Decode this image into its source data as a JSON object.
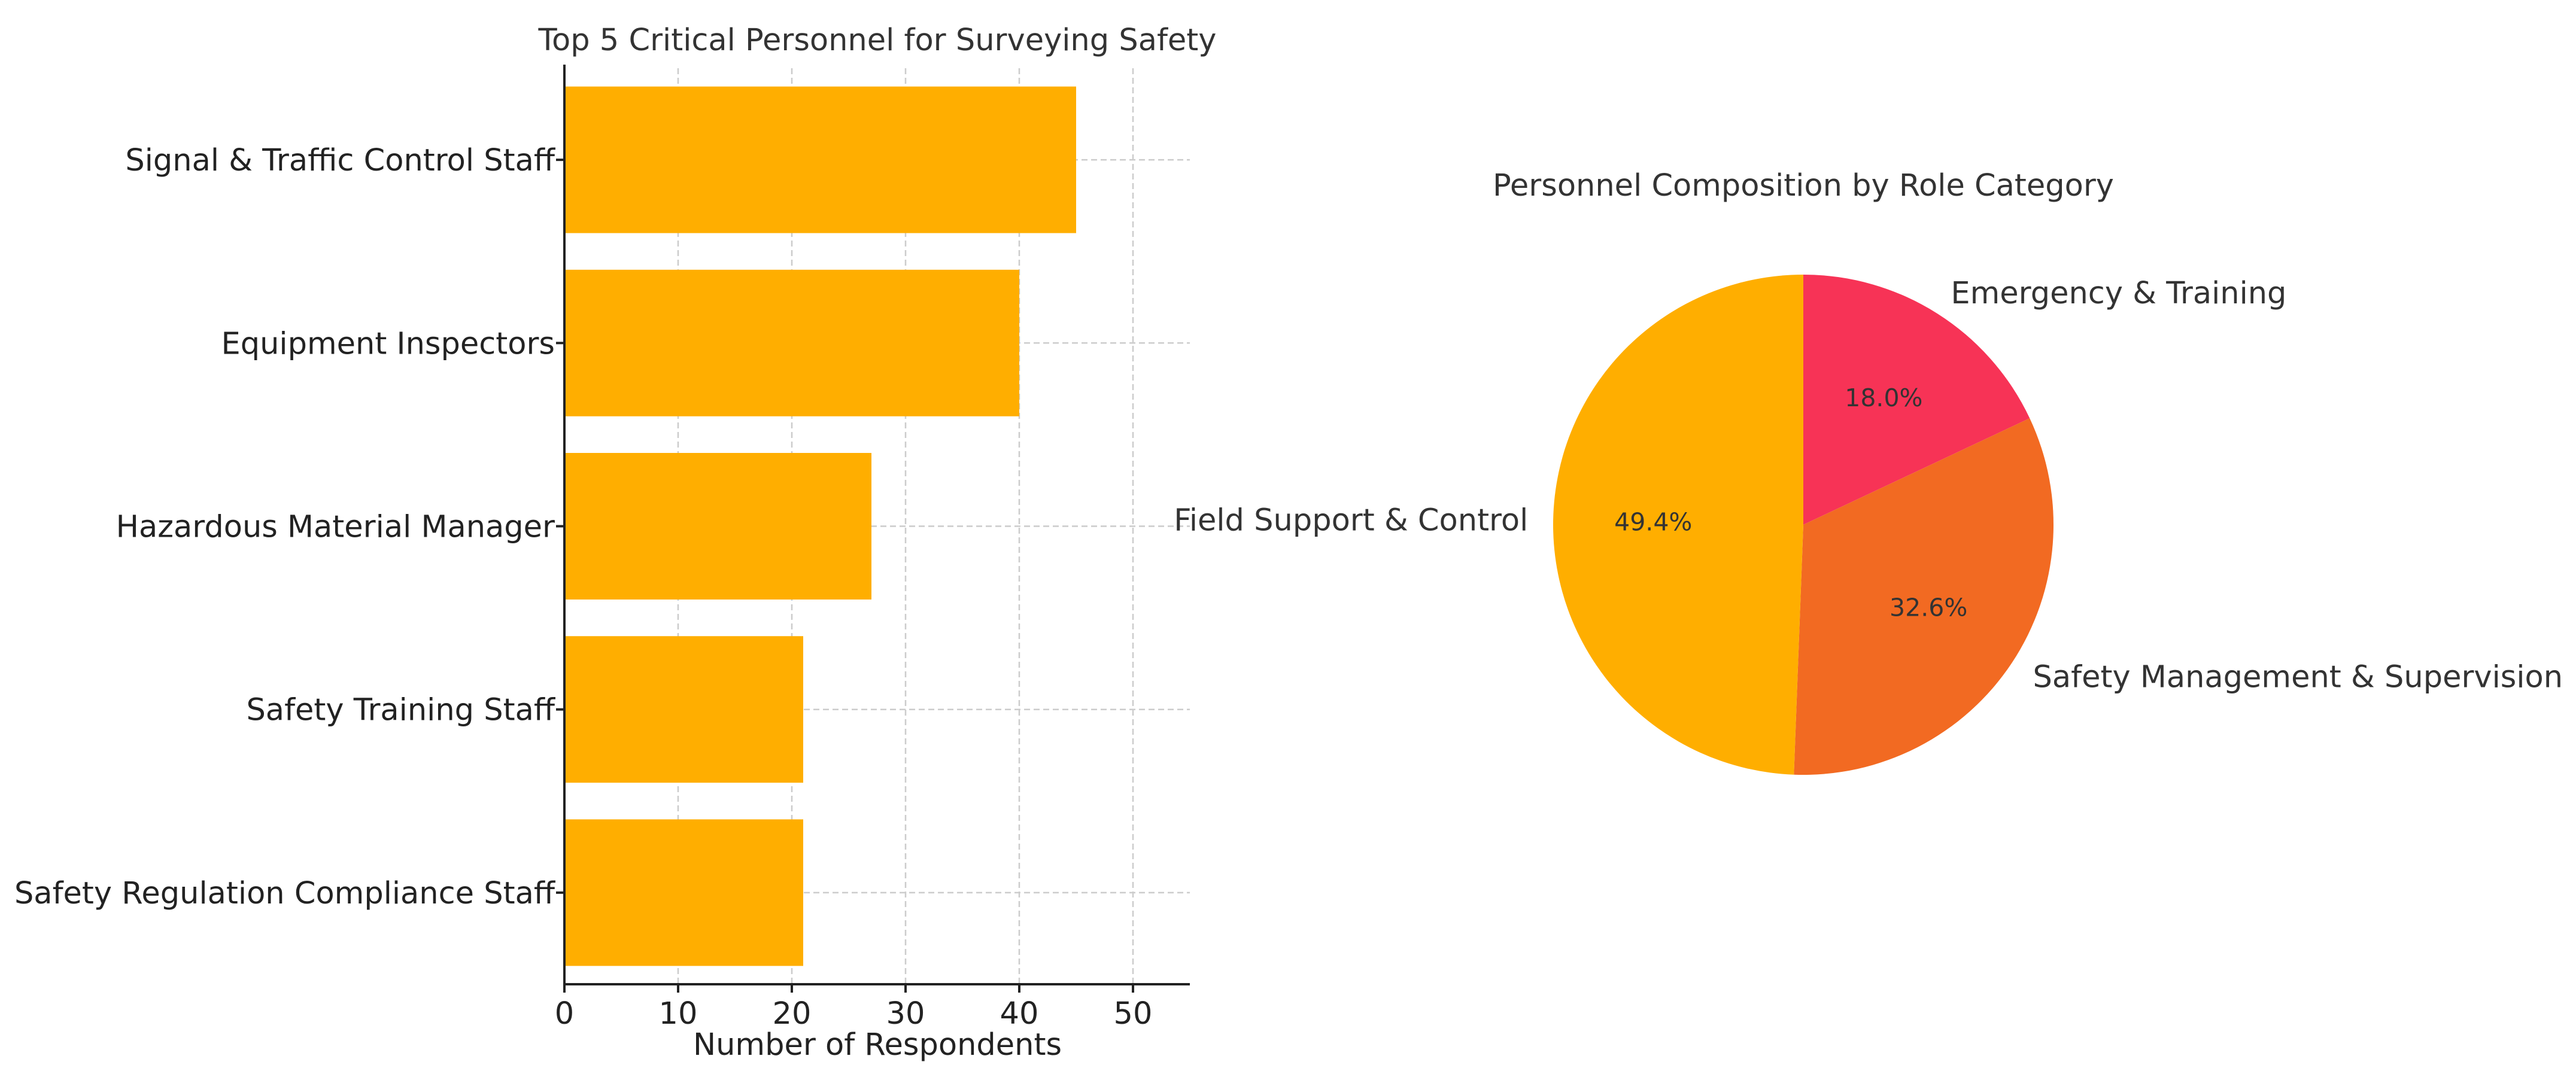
{
  "chart_data": [
    {
      "type": "bar",
      "orientation": "horizontal",
      "title": "Top 5 Critical Personnel for Surveying Safety",
      "xlabel": "Number of Respondents",
      "ylabel": "",
      "categories": [
        "Signal & Traffic Control Staff",
        "Equipment Inspectors",
        "Hazardous Material Manager",
        "Safety Training Staff",
        "Safety Regulation Compliance Staff"
      ],
      "values": [
        45,
        40,
        27,
        21,
        21
      ],
      "xlim": [
        0,
        55
      ],
      "xticks": [
        0,
        10,
        20,
        30,
        40,
        50
      ],
      "grid": true,
      "color": "#FFAE00"
    },
    {
      "type": "pie",
      "title": "Personnel Composition by Role Category",
      "labels": [
        "Emergency & Training",
        "Safety Management & Supervision",
        "Field Support & Control"
      ],
      "values": [
        18.0,
        32.6,
        49.4
      ],
      "pct_labels": [
        "18.0%",
        "32.6%",
        "49.4%"
      ],
      "colors": [
        "#F73356",
        "#F26A22",
        "#FFAE00"
      ],
      "start_angle_deg": 90,
      "direction": "clockwise"
    }
  ]
}
